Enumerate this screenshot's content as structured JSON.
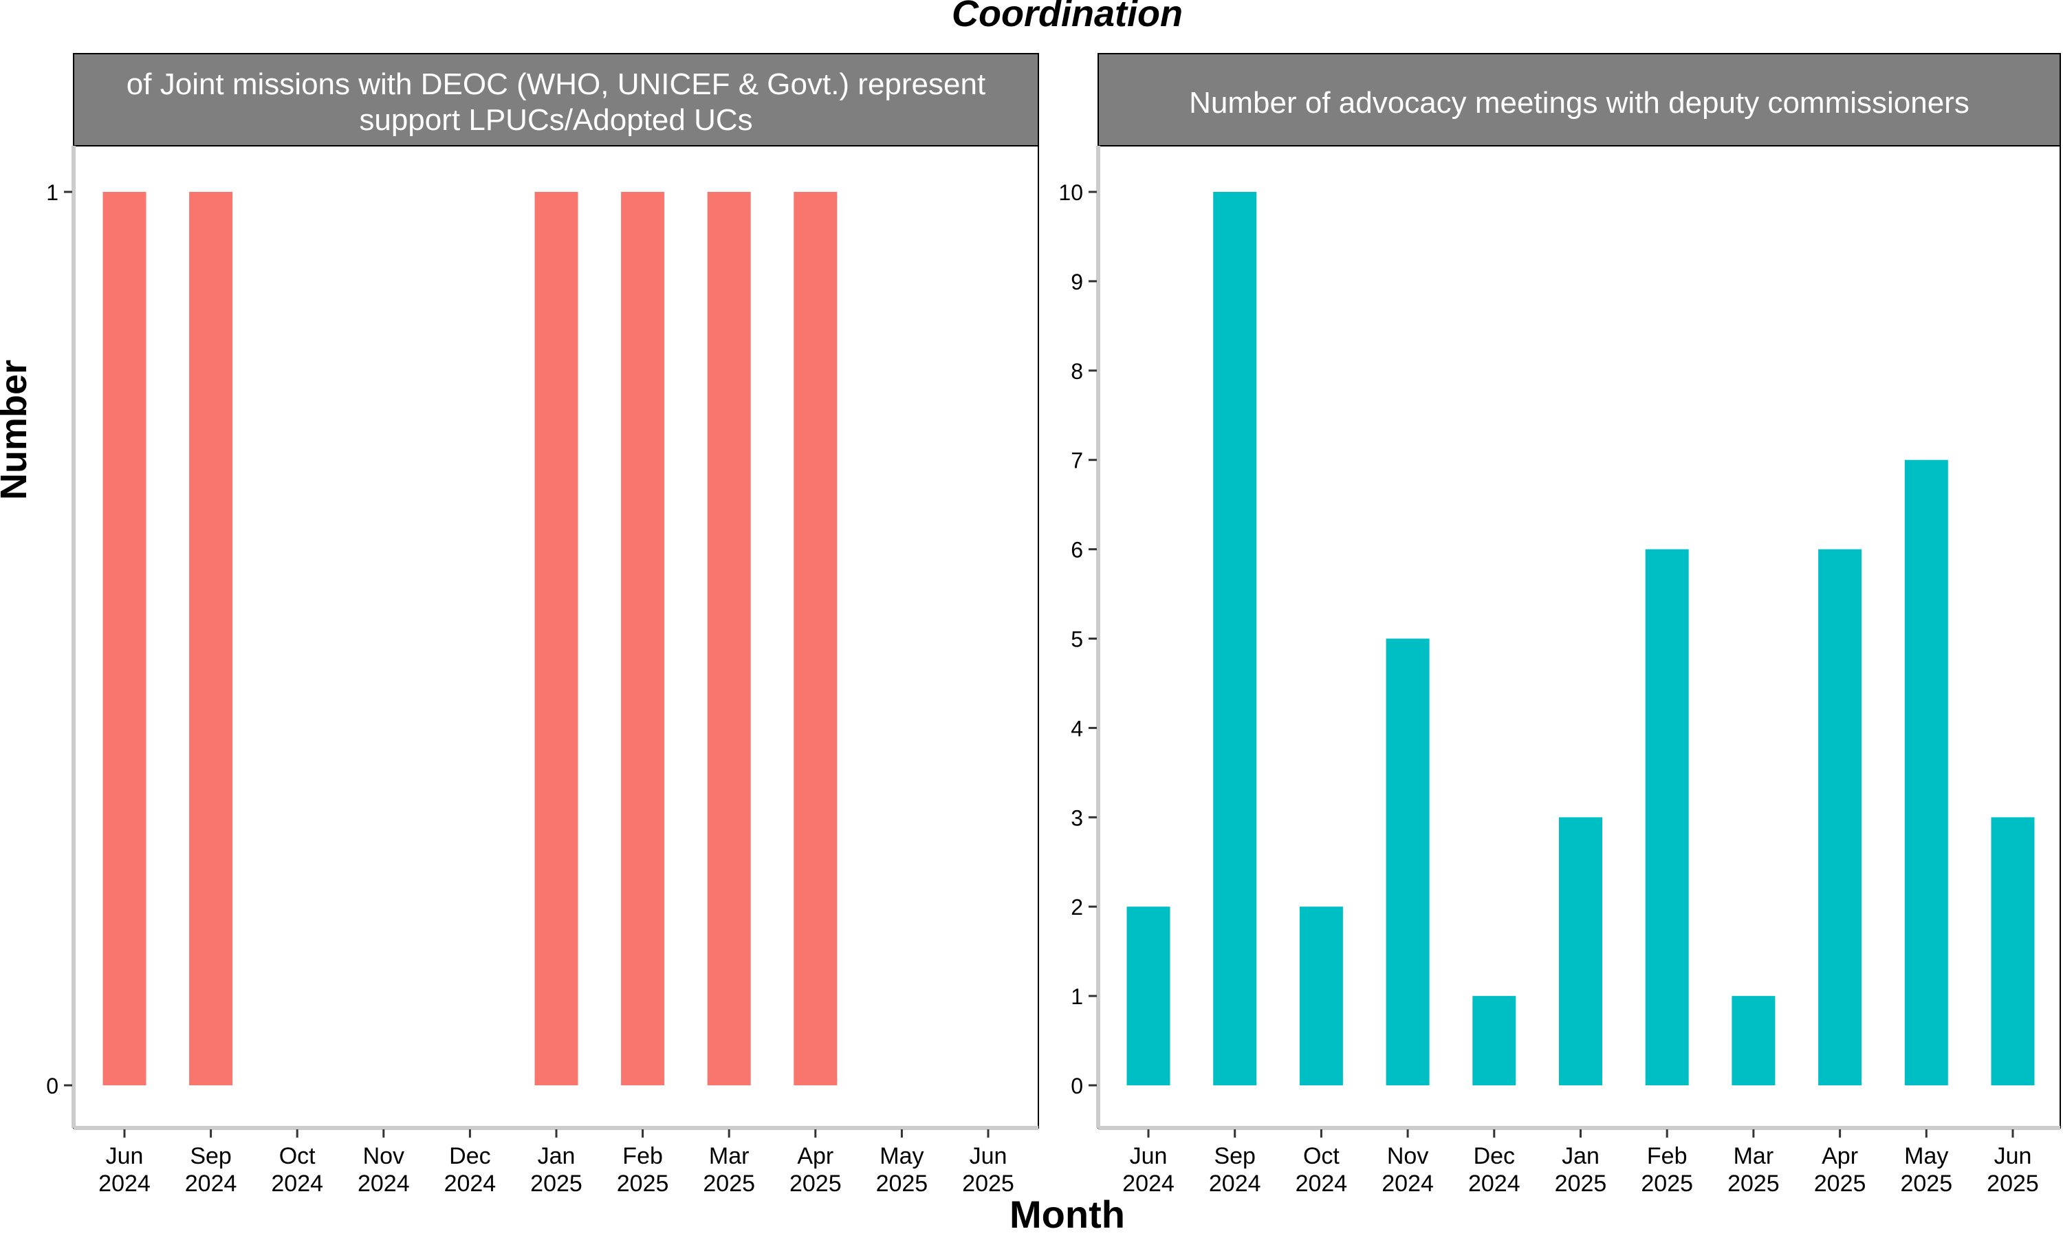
{
  "title": "Coordination",
  "xlabel": "Month",
  "ylabel": "Number",
  "chart_data": [
    {
      "type": "bar",
      "title": "of Joint missions with DEOC (WHO, UNICEF & Govt.) represent support LPUCs/Adopted UCs",
      "title_lines": [
        "of Joint missions with DEOC (WHO, UNICEF & Govt.) represent",
        "support LPUCs/Adopted UCs"
      ],
      "categories": [
        "Jun 2024",
        "Sep 2024",
        "Oct 2024",
        "Nov 2024",
        "Dec 2024",
        "Jan 2025",
        "Feb 2025",
        "Mar 2025",
        "Apr 2025",
        "May 2025",
        "Jun 2025"
      ],
      "values": [
        1,
        1,
        null,
        null,
        null,
        1,
        1,
        1,
        1,
        null,
        null
      ],
      "yticks": [
        0,
        1
      ],
      "ylim": [
        -0.05,
        1.05
      ],
      "color": "#F8766D"
    },
    {
      "type": "bar",
      "title": "Number of advocacy meetings with deputy commissioners",
      "title_lines": [
        "Number of advocacy meetings with deputy commissioners"
      ],
      "categories": [
        "Jun 2024",
        "Sep 2024",
        "Oct 2024",
        "Nov 2024",
        "Dec 2024",
        "Jan 2025",
        "Feb 2025",
        "Mar 2025",
        "Apr 2025",
        "May 2025",
        "Jun 2025"
      ],
      "values": [
        2,
        10,
        2,
        5,
        1,
        3,
        6,
        1,
        6,
        7,
        3
      ],
      "yticks": [
        0,
        1,
        2,
        3,
        4,
        5,
        6,
        7,
        8,
        9,
        10
      ],
      "ylim": [
        -0.5,
        10.5
      ],
      "color": "#00BFC4"
    }
  ]
}
